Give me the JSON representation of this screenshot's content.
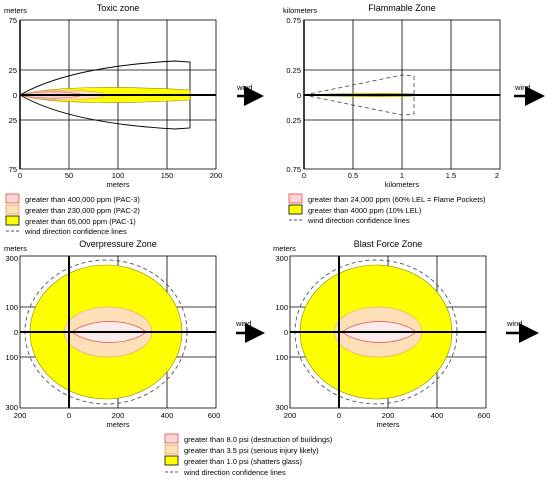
{
  "colors": {
    "pac3_fill": "#fbd6d6",
    "pac3_stroke": "#e05050",
    "pac2_fill": "#fde0b8",
    "pac2_stroke": "#e8a060",
    "pac1_fill": "#ffff00",
    "pac1_stroke": "#b0b000",
    "confidence_line": "#555555"
  },
  "wind_label": "wind",
  "toxic": {
    "title": "Toxic zone",
    "ylabel": "meters",
    "xlabel": "meters",
    "xticks": [
      "0",
      "50",
      "100",
      "150",
      "200"
    ],
    "yticks": [
      "75",
      "25",
      "0",
      "25",
      "75"
    ],
    "legend": [
      "greater than 400,000 ppm (PAC-3)",
      "greater than 230,000 ppm (PAC-2)",
      "greater than 65,000 ppm (PAC-1)",
      "wind direction confidence lines"
    ]
  },
  "flammable": {
    "title": "Flammable Zone",
    "ylabel": "kilometers",
    "xlabel": "kilometers",
    "xticks": [
      "0",
      "0.5",
      "1",
      "1.5",
      "2"
    ],
    "yticks": [
      "0.75",
      "0.25",
      "0",
      "0.25",
      "0.75"
    ],
    "legend": [
      "greater than 24,000 ppm (60% LEL = Flame Pockets)",
      "greater than 4000 ppm (10% LEL)",
      "wind direction confidence lines"
    ]
  },
  "overpressure": {
    "title": "Overpressure Zone",
    "ylabel": "meters",
    "xlabel": "meters",
    "xticks": [
      "200",
      "0",
      "200",
      "400",
      "600"
    ],
    "yticks": [
      "300",
      "100",
      "0",
      "100",
      "300"
    ]
  },
  "blast": {
    "title": "Blast Force Zone",
    "ylabel": "meters",
    "xlabel": "meters",
    "xticks": [
      "200",
      "0",
      "200",
      "400",
      "600"
    ],
    "yticks": [
      "300",
      "100",
      "0",
      "100",
      "300"
    ]
  },
  "bottom_legend": [
    "greater than 8.0 psi (destruction of buildings)",
    "greater than 3.5 psi (serious injury likely)",
    "greater than 1.0 psi (shatters glass)",
    "wind direction confidence lines"
  ],
  "chart_data": [
    {
      "type": "area",
      "title": "Toxic zone",
      "xlabel": "meters",
      "ylabel": "meters",
      "xlim": [
        0,
        200
      ],
      "ylim": [
        -75,
        75
      ],
      "grid": true,
      "series": [
        {
          "name": "greater than 400,000 ppm (PAC-3)",
          "max_downwind": 60,
          "half_width": 3
        },
        {
          "name": "greater than 230,000 ppm (PAC-2)",
          "max_downwind": 85,
          "half_width": 5
        },
        {
          "name": "greater than 65,000 ppm (PAC-1)",
          "max_downwind": 175,
          "half_width": 10
        },
        {
          "name": "wind direction confidence lines",
          "max_downwind": 175,
          "half_width": 35
        }
      ]
    },
    {
      "type": "area",
      "title": "Flammable Zone",
      "xlabel": "kilometers",
      "ylabel": "kilometers",
      "xlim": [
        0,
        2
      ],
      "ylim": [
        -0.75,
        0.75
      ],
      "grid": true,
      "series": [
        {
          "name": "greater than 24,000 ppm (60% LEL = Flame Pockets)",
          "max_downwind": 0.15,
          "half_width": 0.01
        },
        {
          "name": "greater than 4000 ppm (10% LEL)",
          "max_downwind": 1.12,
          "half_width": 0.015
        },
        {
          "name": "wind direction confidence lines",
          "max_downwind": 1.15,
          "half_width": 0.2
        }
      ]
    },
    {
      "type": "area",
      "title": "Overpressure Zone",
      "xlabel": "meters",
      "ylabel": "meters",
      "xlim": [
        -200,
        600
      ],
      "ylim": [
        -300,
        300
      ],
      "grid": true,
      "series": [
        {
          "name": "greater than 8.0 psi (destruction of buildings)",
          "center_x": 150,
          "radius_x": 130,
          "radius_y": 40
        },
        {
          "name": "greater than 3.5 psi (serious injury likely)",
          "center_x": 150,
          "radius_x": 190,
          "radius_y": 100
        },
        {
          "name": "greater than 1.0 psi (shatters glass)",
          "center_x": 150,
          "radius_x": 280,
          "radius_y": 260
        },
        {
          "name": "wind direction confidence lines",
          "center_x": 150,
          "radius_x": 295,
          "radius_y": 285
        }
      ]
    },
    {
      "type": "area",
      "title": "Blast Force Zone",
      "xlabel": "meters",
      "ylabel": "meters",
      "xlim": [
        -200,
        600
      ],
      "ylim": [
        -300,
        300
      ],
      "grid": true,
      "series": [
        {
          "name": "greater than 8.0 psi (destruction of buildings)",
          "center_x": 150,
          "radius_x": 130,
          "radius_y": 40
        },
        {
          "name": "greater than 3.5 psi (serious injury likely)",
          "center_x": 150,
          "radius_x": 190,
          "radius_y": 100
        },
        {
          "name": "greater than 1.0 psi (shatters glass)",
          "center_x": 150,
          "radius_x": 280,
          "radius_y": 260
        },
        {
          "name": "wind direction confidence lines",
          "center_x": 150,
          "radius_x": 295,
          "radius_y": 285
        }
      ]
    }
  ]
}
